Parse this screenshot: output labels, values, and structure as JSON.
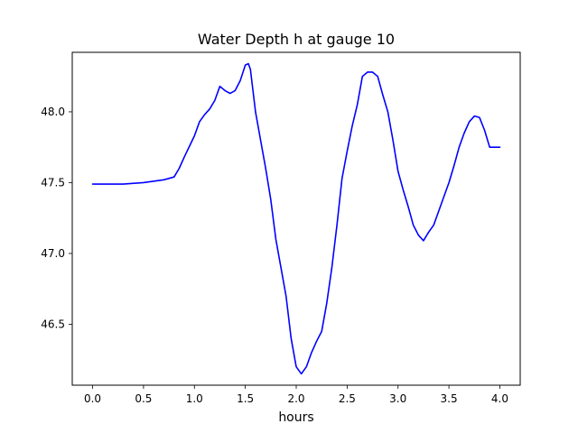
{
  "chart_data": {
    "type": "line",
    "title": "Water Depth h at gauge 10",
    "xlabel": "hours",
    "ylabel": "",
    "xlim": [
      -0.2,
      4.2
    ],
    "ylim": [
      46.07,
      48.42
    ],
    "xticks": [
      0.0,
      0.5,
      1.0,
      1.5,
      2.0,
      2.5,
      3.0,
      3.5,
      4.0
    ],
    "xtick_labels": [
      "0.0",
      "0.5",
      "1.0",
      "1.5",
      "2.0",
      "2.5",
      "3.0",
      "3.5",
      "4.0"
    ],
    "yticks": [
      46.5,
      47.0,
      47.5,
      48.0
    ],
    "ytick_labels": [
      "46.5",
      "47.0",
      "47.5",
      "48.0"
    ],
    "grid": false,
    "series": [
      {
        "color": "#0000ff",
        "x": [
          0.0,
          0.3,
          0.5,
          0.7,
          0.8,
          0.85,
          0.9,
          1.0,
          1.05,
          1.1,
          1.15,
          1.2,
          1.25,
          1.3,
          1.35,
          1.4,
          1.45,
          1.5,
          1.53,
          1.55,
          1.6,
          1.65,
          1.7,
          1.75,
          1.8,
          1.9,
          1.95,
          2.0,
          2.05,
          2.1,
          2.15,
          2.2,
          2.25,
          2.3,
          2.35,
          2.4,
          2.45,
          2.5,
          2.55,
          2.6,
          2.65,
          2.7,
          2.75,
          2.8,
          2.85,
          2.9,
          2.95,
          3.0,
          3.05,
          3.1,
          3.15,
          3.2,
          3.25,
          3.3,
          3.35,
          3.4,
          3.45,
          3.5,
          3.55,
          3.6,
          3.65,
          3.7,
          3.75,
          3.8,
          3.85,
          3.9,
          3.95,
          4.0
        ],
        "y": [
          47.49,
          47.49,
          47.5,
          47.52,
          47.54,
          47.6,
          47.68,
          47.83,
          47.93,
          47.98,
          48.02,
          48.08,
          48.18,
          48.15,
          48.13,
          48.15,
          48.22,
          48.33,
          48.34,
          48.3,
          48.0,
          47.8,
          47.6,
          47.38,
          47.1,
          46.7,
          46.4,
          46.2,
          46.15,
          46.2,
          46.3,
          46.38,
          46.45,
          46.65,
          46.9,
          47.2,
          47.53,
          47.72,
          47.9,
          48.05,
          48.25,
          48.28,
          48.28,
          48.25,
          48.12,
          48.0,
          47.8,
          47.58,
          47.45,
          47.33,
          47.2,
          47.13,
          47.09,
          47.15,
          47.2,
          47.3,
          47.4,
          47.5,
          47.62,
          47.75,
          47.85,
          47.93,
          47.97,
          47.96,
          47.87,
          47.75,
          47.75,
          47.75
        ]
      }
    ]
  }
}
